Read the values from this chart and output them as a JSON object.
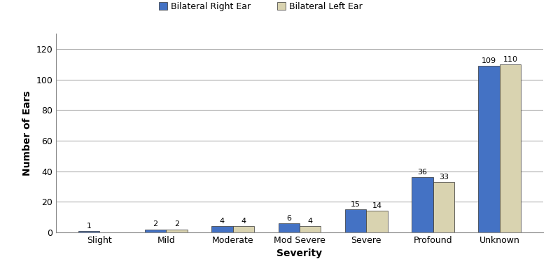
{
  "categories": [
    "Slight",
    "Mild",
    "Moderate",
    "Mod Severe",
    "Severe",
    "Profound",
    "Unknown"
  ],
  "right_ear": [
    1,
    2,
    4,
    6,
    15,
    36,
    109
  ],
  "left_ear": [
    0,
    2,
    4,
    4,
    14,
    33,
    110
  ],
  "right_color": "#4472C4",
  "left_color": "#D9D3B0",
  "right_label": "Bilateral Right Ear",
  "left_label": "Bilateral Left Ear",
  "xlabel": "Severity",
  "ylabel": "Number of Ears",
  "ylim": [
    0,
    130
  ],
  "yticks": [
    0,
    20,
    40,
    60,
    80,
    100,
    120
  ],
  "bar_width": 0.32,
  "axis_label_fontsize": 10,
  "tick_fontsize": 9,
  "legend_fontsize": 9,
  "annotation_fontsize": 8,
  "background_color": "#ffffff",
  "grid_color": "#b0b0b0"
}
